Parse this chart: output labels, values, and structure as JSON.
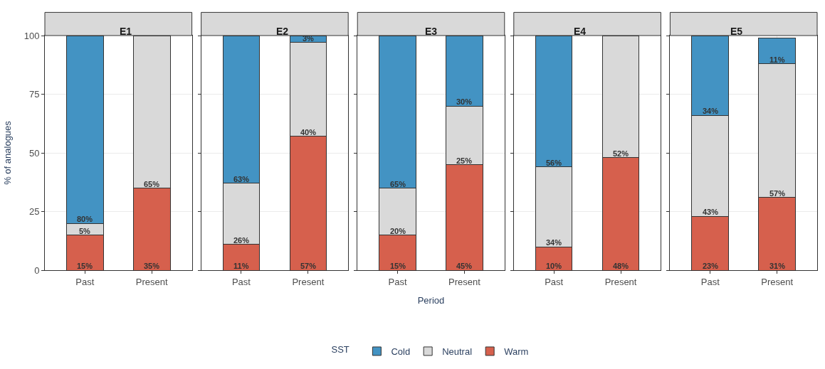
{
  "chart_data": [
    {
      "type": "bar",
      "title": "E1",
      "ylabel": "% of analogues",
      "categories": [
        "Past",
        "Present"
      ],
      "stacked": true,
      "ylim": [
        0,
        100
      ],
      "yticks": [
        0,
        25,
        50,
        75,
        100
      ],
      "grid": true,
      "legend": "bottom",
      "legend_title": "SST",
      "series": [
        {
          "name": "Warm",
          "color": "#d6604d",
          "values": [
            15,
            35
          ],
          "value_labels": [
            "15%",
            "35%"
          ]
        },
        {
          "name": "Neutral",
          "color": "#d9d9d9",
          "values": [
            5,
            65
          ],
          "value_labels": [
            "5%",
            "65%"
          ]
        },
        {
          "name": "Cold",
          "color": "#4393c3",
          "values": [
            80,
            null
          ],
          "value_labels": [
            "80%",
            null
          ]
        }
      ]
    },
    {
      "type": "bar",
      "title": "E2",
      "categories": [
        "Past",
        "Present"
      ],
      "stacked": true,
      "ylim": [
        0,
        100
      ],
      "yticks": [
        0,
        25,
        50,
        75,
        100
      ],
      "grid": true,
      "tick_labels": "x",
      "series": [
        {
          "color": "#d6604d",
          "values": [
            11,
            57
          ],
          "value_labels": [
            "11%",
            "57%"
          ]
        },
        {
          "color": "#d9d9d9",
          "values": [
            26,
            40
          ],
          "value_labels": [
            "26%",
            "40%"
          ]
        },
        {
          "color": "#4393c3",
          "values": [
            63,
            3
          ],
          "value_labels": [
            "63%",
            "3%"
          ]
        }
      ]
    },
    {
      "type": "bar",
      "title": "E3",
      "xlabel": "Period",
      "categories": [
        "Past",
        "Present"
      ],
      "stacked": true,
      "ylim": [
        0,
        100
      ],
      "yticks": [
        0,
        25,
        50,
        75,
        100
      ],
      "grid": true,
      "tick_labels": "x",
      "series": [
        {
          "color": "#d6604d",
          "values": [
            15,
            45
          ],
          "value_labels": [
            "15%",
            "45%"
          ]
        },
        {
          "color": "#d9d9d9",
          "values": [
            20,
            25
          ],
          "value_labels": [
            "20%",
            "25%"
          ]
        },
        {
          "color": "#4393c3",
          "values": [
            65,
            30
          ],
          "value_labels": [
            "65%",
            "30%"
          ]
        }
      ]
    },
    {
      "type": "bar",
      "title": "E4",
      "categories": [
        "Past",
        "Present"
      ],
      "stacked": true,
      "ylim": [
        0,
        100
      ],
      "yticks": [
        0,
        25,
        50,
        75,
        100
      ],
      "grid": true,
      "tick_labels": "x",
      "series": [
        {
          "color": "#d6604d",
          "values": [
            10,
            48
          ],
          "value_labels": [
            "10%",
            "48%"
          ]
        },
        {
          "color": "#d9d9d9",
          "values": [
            34,
            52
          ],
          "value_labels": [
            "34%",
            "52%"
          ]
        },
        {
          "color": "#4393c3",
          "values": [
            56,
            null
          ],
          "value_labels": [
            "56%",
            null
          ]
        }
      ]
    },
    {
      "type": "bar",
      "title": "E5",
      "categories": [
        "Past",
        "Present"
      ],
      "stacked": true,
      "ylim": [
        0,
        100
      ],
      "yticks": [
        0,
        25,
        50,
        75,
        100
      ],
      "grid": true,
      "tick_labels": "x",
      "series": [
        {
          "color": "#d6604d",
          "values": [
            23,
            31
          ],
          "value_labels": [
            "23%",
            "31%"
          ]
        },
        {
          "color": "#d9d9d9",
          "values": [
            43,
            57
          ],
          "value_labels": [
            "43%",
            "57%"
          ]
        },
        {
          "color": "#4393c3",
          "values": [
            34,
            11
          ],
          "value_labels": [
            "34%",
            "11%"
          ]
        }
      ]
    }
  ]
}
